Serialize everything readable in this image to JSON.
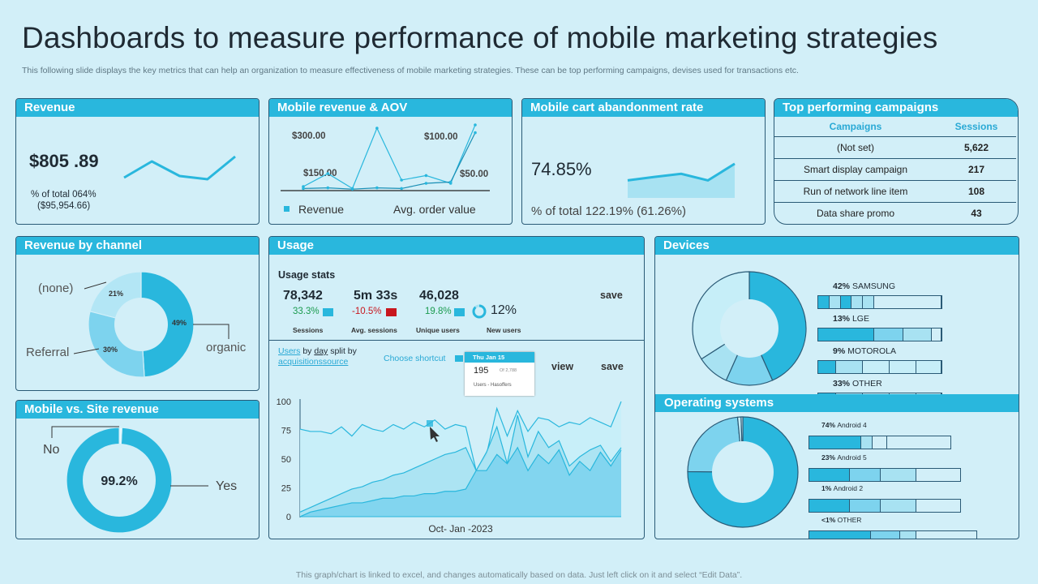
{
  "title": "Dashboards to measure performance of mobile marketing strategies",
  "subtitle": "This following slide displays the key metrics that can help an organization to measure effectiveness of mobile marketing strategies. These can be top performing campaigns, devises used for transactions etc.",
  "footer": "This graph/chart is linked to excel, and changes automatically based on data. Just left click on it and select “Edit Data”.",
  "colors": {
    "accent": "#29b7dd",
    "dark": "#1f2a33",
    "light": "#a8e2f2",
    "lighter": "#c6eef8",
    "background": "#d2eff8",
    "positive": "#1b9b4f",
    "negative": "#c8161d"
  },
  "revenue": {
    "header": "Revenue",
    "value": "$805 .89",
    "note_line1": "% of total 064%",
    "note_line2": "($95,954.66)",
    "sparkline": [
      20,
      70,
      25,
      15,
      85
    ]
  },
  "mobile_revenue": {
    "header": "Mobile revenue & AOV",
    "labels": [
      "$300.00",
      "$100.00",
      "$150.00",
      "$50.00"
    ],
    "legend_revenue": "Revenue",
    "legend_aov": "Avg. order value",
    "revenue_series": [
      5,
      25,
      2,
      95,
      15,
      22,
      10,
      100
    ],
    "aov_series": [
      2,
      3,
      1,
      3,
      2,
      10,
      12,
      88
    ]
  },
  "cart_abandonment": {
    "header": "Mobile cart abandonment rate",
    "value": "74.85%",
    "note": "% of total  122.19% (61.26%)",
    "area_series": [
      40,
      48,
      55,
      40,
      78
    ]
  },
  "campaigns": {
    "header": "Top performing campaigns",
    "col_campaign": "Campaigns",
    "col_sessions": "Sessions",
    "rows": [
      {
        "name": "(Not set)",
        "sessions": "5,622"
      },
      {
        "name": "Smart display campaign",
        "sessions": "217"
      },
      {
        "name": "Run of network line item",
        "sessions": "108"
      },
      {
        "name": "Data share promo",
        "sessions": "43"
      }
    ]
  },
  "revenue_by_channel": {
    "header": "Revenue by channel",
    "slices": [
      {
        "label": "organic",
        "value": 49,
        "pct": "49%"
      },
      {
        "label": "Referral",
        "value": 30,
        "pct": "30%"
      },
      {
        "label": "(none)",
        "value": 21,
        "pct": "21%"
      }
    ]
  },
  "mobile_vs_site": {
    "header": "Mobile vs. Site revenue",
    "center": "99.2%",
    "yes_label": "Yes",
    "no_label": "No",
    "yes_value": 99.2,
    "no_value": 0.8
  },
  "usage": {
    "header": "Usage",
    "stats_title": "Usage stats",
    "save_label": "save",
    "stats": [
      {
        "value": "78,342",
        "change": "33.3%",
        "direction": "up",
        "label": "Sessions"
      },
      {
        "value": "5m 33s",
        "change": "-10.5%",
        "direction": "down",
        "label": "Avg. sessions"
      },
      {
        "value": "46,028",
        "change": "19.8%",
        "direction": "up",
        "label": "Unique users"
      }
    ],
    "new_users": {
      "value": "12%",
      "label": "New users",
      "fraction": 0.12
    },
    "links": {
      "users": "Users",
      "by": "by",
      "day": "day",
      "split_by": "split by",
      "acquisitions": "acquisitions",
      "source": "source"
    },
    "choose_shortcut": "Choose shortcut",
    "tooltip": {
      "date": "Thu Jan 15",
      "value": "195",
      "small": "Of 2,788",
      "sub": "Users - Hasoffers"
    },
    "view_label": "view",
    "save_label2": "save",
    "xlabel": "Oct- Jan -2023"
  },
  "devices": {
    "header": "Devices",
    "items": [
      {
        "pct": "42%",
        "name": "SAMSUNG",
        "value": 42
      },
      {
        "pct": "13%",
        "name": "LGE",
        "value": 13
      },
      {
        "pct": "9%",
        "name": "MOTOROLA",
        "value": 9
      },
      {
        "pct": "33%",
        "name": "OTHER",
        "value": 33
      }
    ]
  },
  "operating_systems": {
    "header": "Operating systems",
    "items": [
      {
        "pct": "74%",
        "name": "Android 4",
        "value": 74
      },
      {
        "pct": "23%",
        "name": "Android 5",
        "value": 23
      },
      {
        "pct": "1%",
        "name": "Android 2",
        "value": 1
      },
      {
        "pct": "<1%",
        "name": "OTHER",
        "value": 0.5
      }
    ]
  },
  "chart_data": [
    {
      "type": "line",
      "title": "Revenue",
      "series": [
        {
          "name": "Revenue",
          "values": [
            20,
            70,
            25,
            15,
            85
          ]
        }
      ]
    },
    {
      "type": "line",
      "title": "Mobile revenue & AOV",
      "series": [
        {
          "name": "Revenue",
          "values": [
            5,
            25,
            2,
            95,
            15,
            22,
            10,
            100
          ]
        },
        {
          "name": "Avg. order value",
          "values": [
            2,
            3,
            1,
            3,
            2,
            10,
            12,
            88
          ]
        }
      ]
    },
    {
      "type": "area",
      "title": "Mobile cart abandonment rate",
      "series": [
        {
          "name": "Rate",
          "values": [
            40,
            48,
            55,
            40,
            78
          ]
        }
      ]
    },
    {
      "type": "pie",
      "title": "Revenue by channel",
      "categories": [
        "organic",
        "Referral",
        "(none)"
      ],
      "values": [
        49,
        30,
        21
      ]
    },
    {
      "type": "pie",
      "title": "Mobile vs. Site revenue",
      "categories": [
        "Yes",
        "No"
      ],
      "values": [
        99.2,
        0.8
      ]
    },
    {
      "type": "area",
      "title": "Usage",
      "xlabel": "Oct- Jan -2023",
      "ylim": [
        0,
        100
      ],
      "yticks": [
        0,
        25,
        50,
        75,
        100
      ],
      "series": [
        {
          "name": "Series 1",
          "values": [
            76,
            74,
            74,
            72,
            78,
            70,
            80,
            76,
            74,
            80,
            76,
            82,
            78,
            84,
            76,
            80,
            78,
            40,
            54,
            94,
            70,
            92,
            74,
            86,
            84,
            78,
            82,
            80,
            86,
            82,
            78,
            100
          ]
        },
        {
          "name": "Series 2",
          "values": [
            4,
            8,
            12,
            16,
            20,
            24,
            26,
            30,
            32,
            36,
            38,
            42,
            46,
            50,
            54,
            56,
            60,
            40,
            56,
            78,
            46,
            88,
            52,
            74,
            60,
            66,
            44,
            52,
            58,
            62,
            48,
            60
          ]
        },
        {
          "name": "Series 3",
          "values": [
            0,
            4,
            6,
            8,
            10,
            12,
            12,
            14,
            16,
            16,
            18,
            18,
            20,
            20,
            22,
            22,
            24,
            40,
            40,
            54,
            46,
            60,
            40,
            54,
            46,
            58,
            36,
            48,
            40,
            56,
            44,
            58
          ]
        }
      ]
    },
    {
      "type": "pie",
      "title": "Devices",
      "categories": [
        "SAMSUNG",
        "LGE",
        "MOTOROLA",
        "OTHER"
      ],
      "values": [
        42,
        13,
        9,
        33
      ]
    },
    {
      "type": "pie",
      "title": "Operating systems",
      "categories": [
        "Android 4",
        "Android 5",
        "Android 2",
        "OTHER"
      ],
      "values": [
        74,
        23,
        1,
        0.5
      ]
    }
  ]
}
